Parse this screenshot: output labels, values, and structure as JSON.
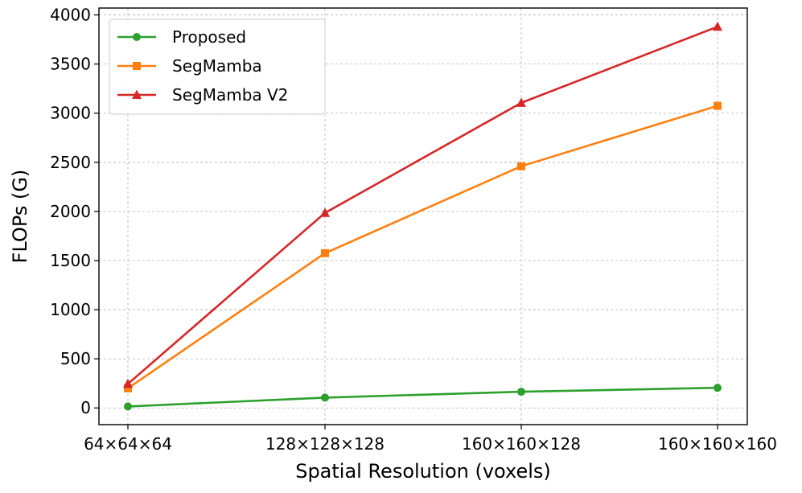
{
  "chart_data": {
    "type": "line",
    "title": "",
    "xlabel": "Spatial Resolution (voxels)",
    "ylabel": "FLOPs (G)",
    "categories": [
      "64×64×64",
      "128×128×128",
      "160×160×128",
      "160×160×160"
    ],
    "ylim": [
      -170,
      4070
    ],
    "yticks": [
      0,
      500,
      1000,
      1500,
      2000,
      2500,
      3000,
      3500,
      4000
    ],
    "grid": true,
    "legend_position": "top-left",
    "series": [
      {
        "name": "Proposed",
        "color": "#2ca02c",
        "marker": "circle",
        "values": [
          15,
          105,
          165,
          205
        ]
      },
      {
        "name": "SegMamba",
        "color": "#ff7f0e",
        "marker": "square",
        "values": [
          200,
          1575,
          2460,
          3075
        ]
      },
      {
        "name": "SegMamba V2",
        "color": "#d62728",
        "marker": "triangle",
        "values": [
          245,
          1985,
          3105,
          3880
        ]
      }
    ]
  }
}
